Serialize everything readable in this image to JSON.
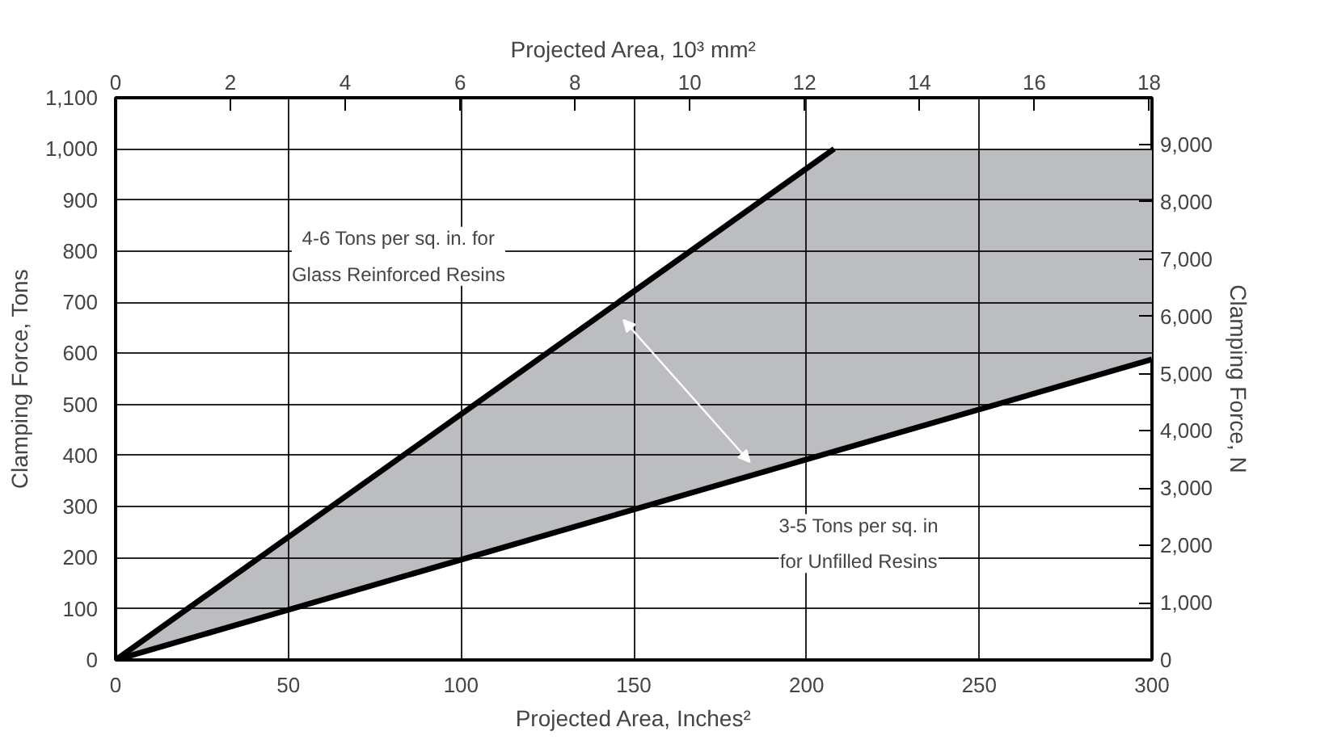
{
  "chart_data": {
    "type": "line",
    "xlabel": "Projected Area, Inches²",
    "x2label": "Projected Area, 10³ mm²",
    "ylabel": "Clamping Force, Tons",
    "y2label": "Clamping Force, N",
    "xlim": [
      0,
      300
    ],
    "xticks": [
      0,
      50,
      100,
      150,
      200,
      250,
      300
    ],
    "x2lim": [
      0,
      18.05
    ],
    "x2ticks": [
      0,
      2,
      4,
      6,
      8,
      10,
      12,
      14,
      16,
      18
    ],
    "ylim": [
      0,
      1100
    ],
    "yticks": [
      0,
      100,
      200,
      300,
      400,
      500,
      600,
      700,
      800,
      900,
      {
        "value": 1000,
        "label": "1,000"
      },
      {
        "value": 1100,
        "label": "1,100"
      }
    ],
    "y2lim": [
      0,
      9820
    ],
    "y2ticks": [
      0,
      {
        "value": 1000,
        "label": "1,000"
      },
      {
        "value": 2000,
        "label": "2,000"
      },
      {
        "value": 3000,
        "label": "3,000"
      },
      {
        "value": 4000,
        "label": "4,000"
      },
      {
        "value": 5000,
        "label": "5,000"
      },
      {
        "value": 6000,
        "label": "6,000"
      },
      {
        "value": 7000,
        "label": "7,000"
      },
      {
        "value": 8000,
        "label": "8,000"
      },
      {
        "value": 9000,
        "label": "9,000"
      }
    ],
    "grid": true,
    "series": [
      {
        "color": "#000000",
        "x": [
          0,
          208
        ],
        "values": [
          0,
          1000
        ]
      },
      {
        "color": "#000000",
        "x": [
          0,
          208,
          300
        ],
        "values": [
          0,
          408,
          588
        ],
        "lower": [
          0,
          408,
          588
        ],
        "upper": [
          0,
          1000,
          1000
        ]
      }
    ],
    "annotations": [
      "4-6 Tons per sq. in. for\nGlass Reinforced Resins",
      "3-5 Tons per sq. in\nfor Unfilled Resins"
    ]
  }
}
